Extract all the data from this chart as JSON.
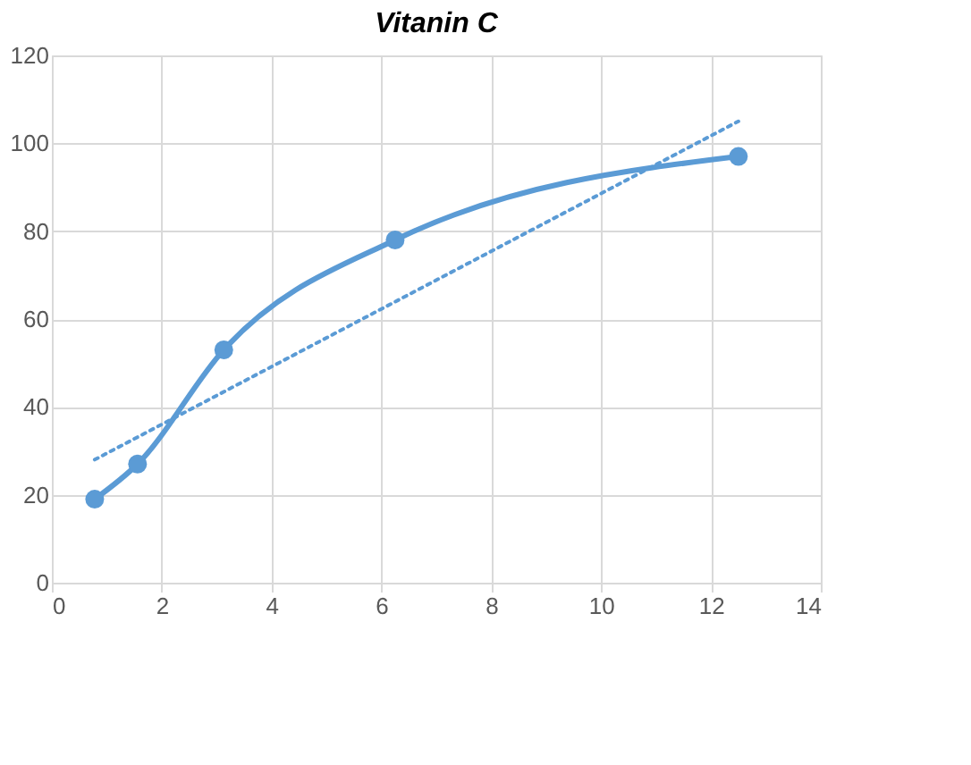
{
  "chart_data": {
    "type": "line",
    "title": "Vitanin C",
    "xlim": [
      0,
      14
    ],
    "xticks": [
      0,
      2,
      4,
      6,
      8,
      10,
      12,
      14
    ],
    "ylim": [
      0,
      120
    ],
    "yticks": [
      0,
      20,
      40,
      60,
      80,
      100,
      120
    ],
    "grid": true,
    "series": [
      {
        "color": "#5b9bd5",
        "x": [
          0.78,
          1.56,
          3.13,
          6.25,
          12.5
        ],
        "values": [
          19,
          27,
          53,
          78,
          97
        ],
        "marker": "circle",
        "line_style": "solid"
      },
      {
        "type": "line",
        "color": "#5b9bd5",
        "x": [
          0.78,
          12.5
        ],
        "values": [
          28,
          105
        ],
        "marker": "none",
        "line_style": "dotted"
      }
    ]
  }
}
